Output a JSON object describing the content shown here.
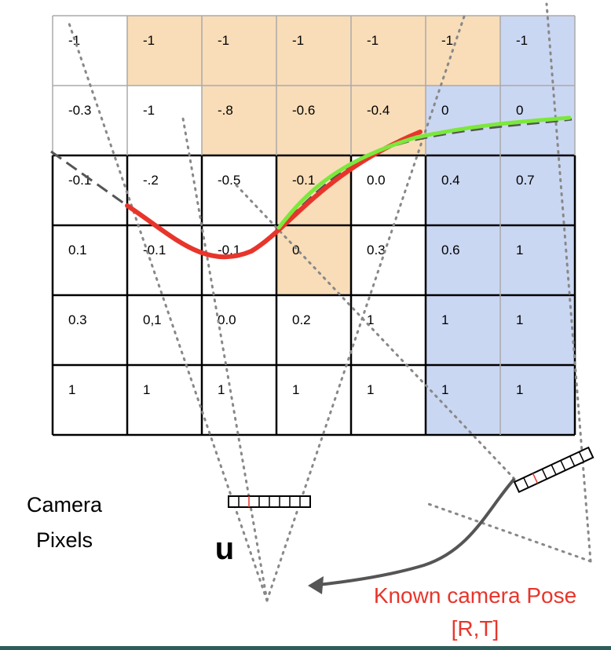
{
  "grid": {
    "rows": [
      [
        "-1",
        "-1",
        "-1",
        "-1",
        "-1",
        "-1",
        "-1"
      ],
      [
        "-0.3",
        "-1",
        "-.8",
        "-0.6",
        "-0.4",
        "0",
        "0"
      ],
      [
        "-0.1",
        "-.2",
        "-0.5",
        "-0.1",
        "0.0",
        "0.4",
        "0.7"
      ],
      [
        "0.1",
        "-0.1",
        "-0.1",
        "0",
        "0.3",
        "0.6",
        "1"
      ],
      [
        "0.3",
        "0,1",
        "0.0",
        "0.2",
        "1",
        "1",
        "1"
      ],
      [
        "1",
        "1",
        "1",
        "1",
        "1",
        "1",
        "1"
      ]
    ],
    "fills": [
      [
        "w",
        "o",
        "o",
        "o",
        "o",
        "o",
        "b"
      ],
      [
        "w",
        "w",
        "o",
        "o",
        "o",
        "b",
        "b"
      ],
      [
        "w",
        "w",
        "w",
        "o",
        "w",
        "b",
        "b"
      ],
      [
        "w",
        "w",
        "w",
        "o",
        "w",
        "b",
        "b"
      ],
      [
        "w",
        "w",
        "w",
        "w",
        "w",
        "b",
        "b"
      ],
      [
        "w",
        "w",
        "w",
        "w",
        "w",
        "b",
        "b"
      ]
    ]
  },
  "colors": {
    "orange_fill": "#f8ddb8",
    "blue_fill": "#cad7f2",
    "white_fill": "#ffffff",
    "red_curve": "#e8352b",
    "green_curve": "#7be83c",
    "dashed_curve": "#555555",
    "arrow": "#555555",
    "dotted": "#888888"
  },
  "labels": {
    "camera_pixels_line1": "Camera",
    "camera_pixels_line2": "Pixels",
    "u": "u",
    "pose_line1": "Known camera Pose",
    "pose_line2": "[R,T]"
  }
}
